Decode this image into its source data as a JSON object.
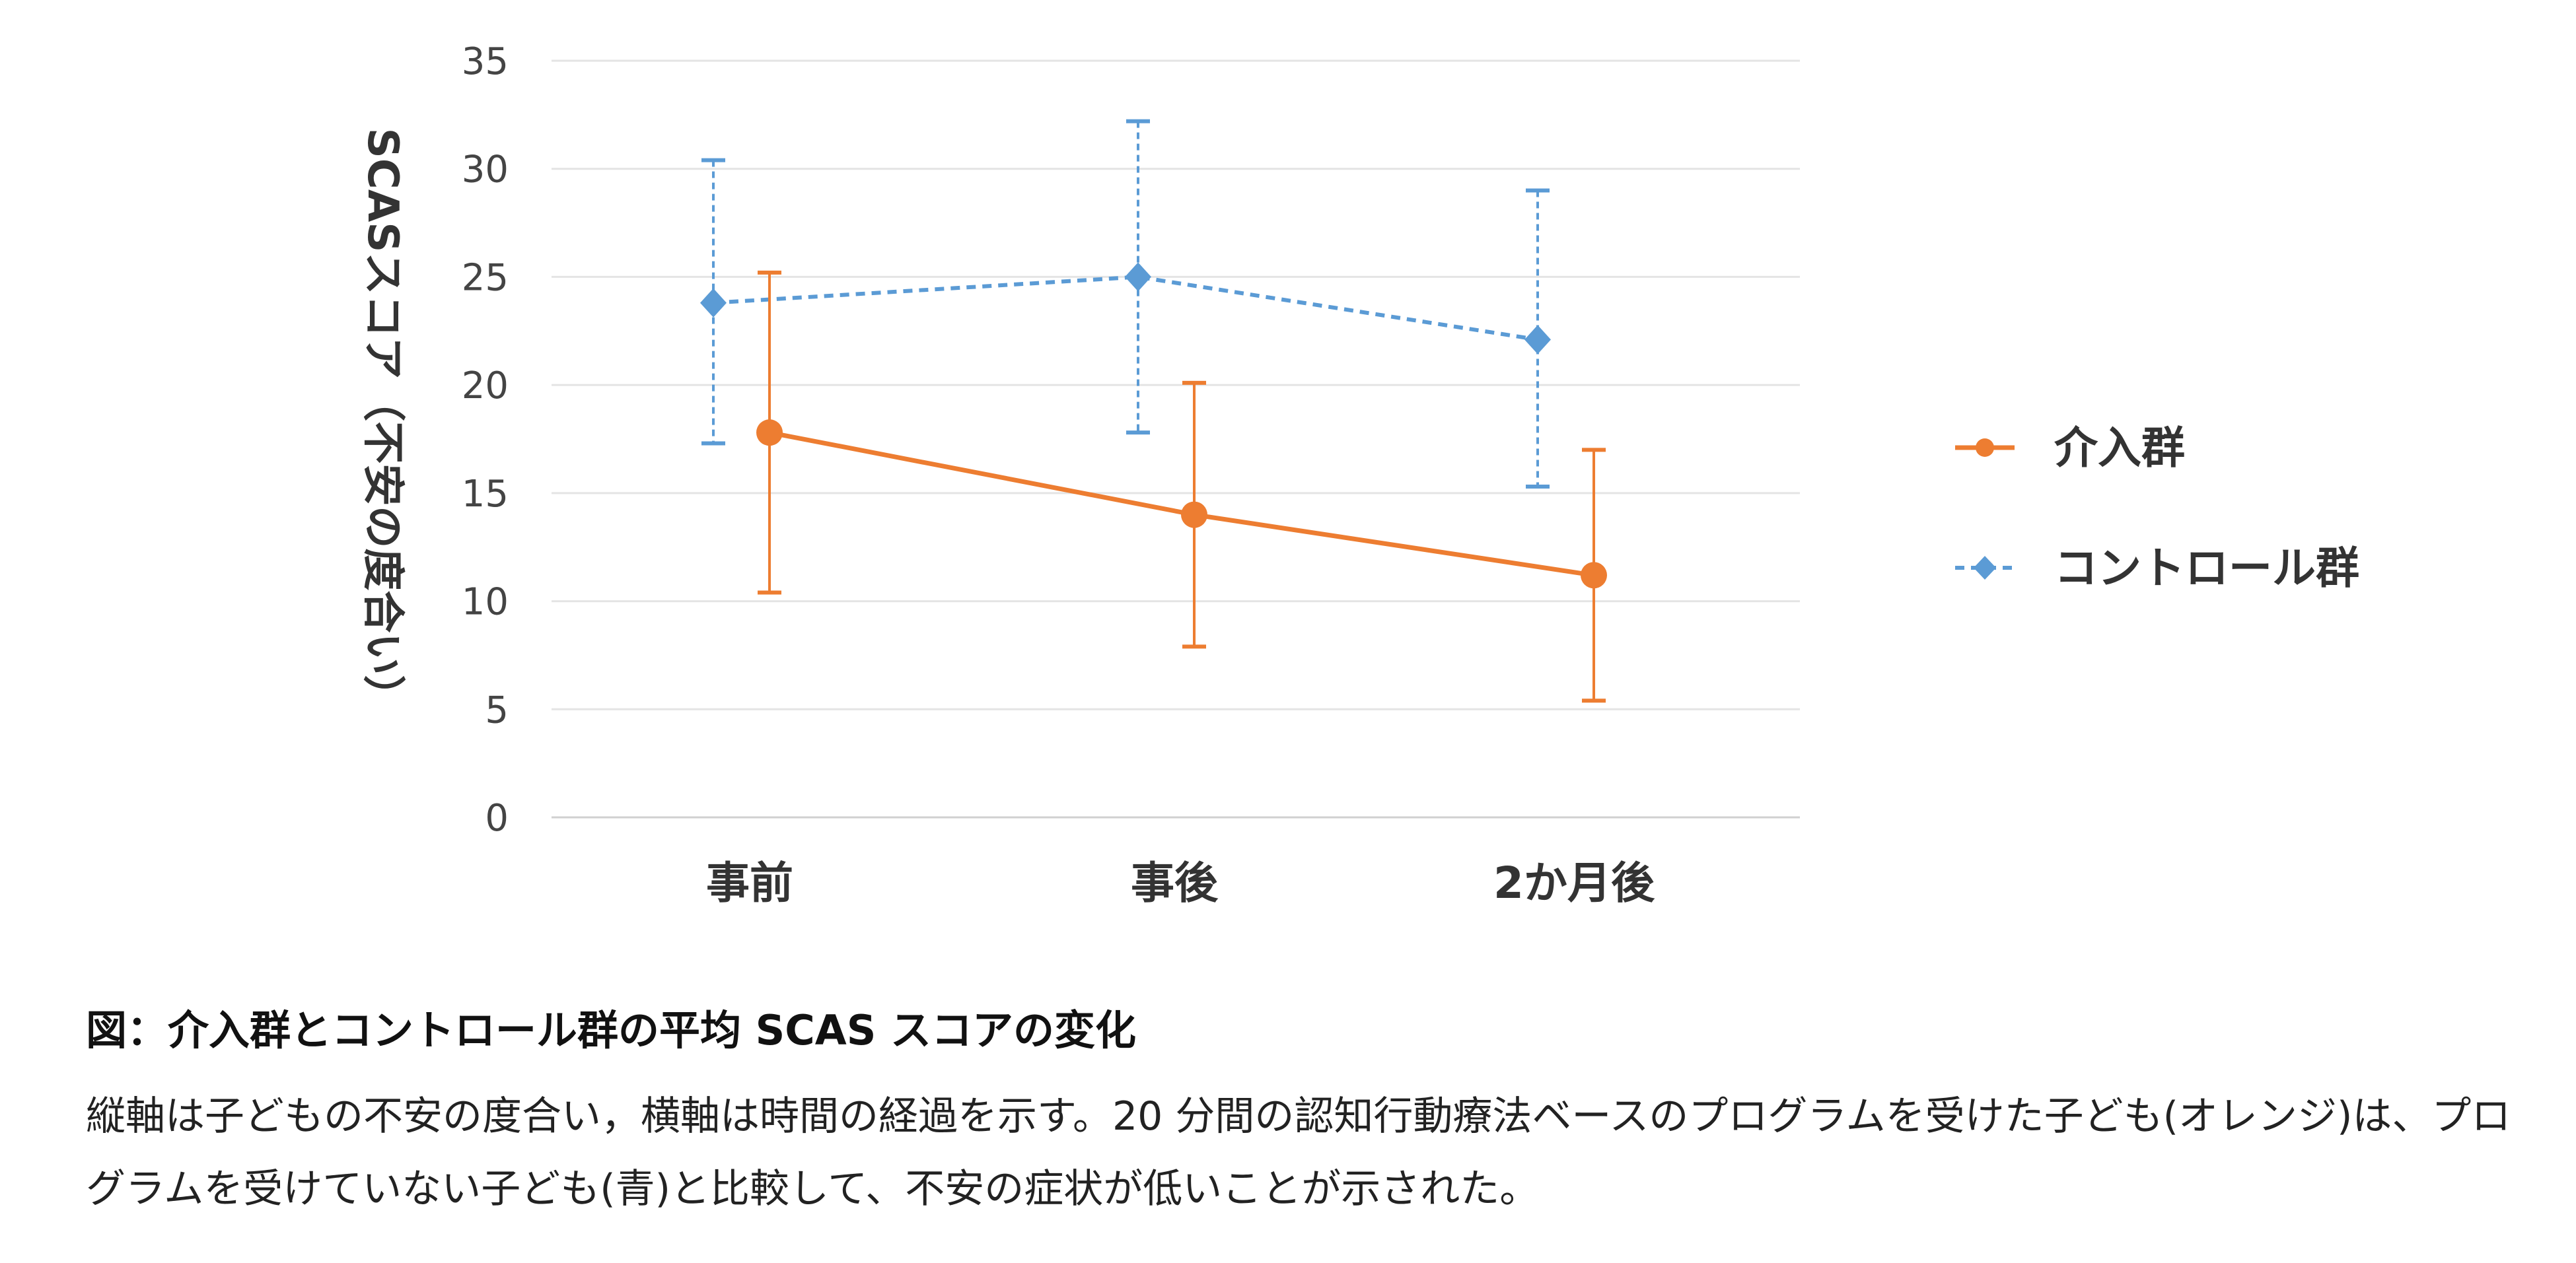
{
  "chart_data": {
    "type": "line",
    "categories": [
      "事前",
      "事後",
      "2か月後"
    ],
    "ylabel": "SCASスコア（不安の度合い）",
    "ylim": [
      0,
      35
    ],
    "yticks": [
      0,
      5,
      10,
      15,
      20,
      25,
      30,
      35
    ],
    "grid": true,
    "legend_position": "right",
    "series": [
      {
        "name": "介入群",
        "color": "#ED7D31",
        "marker": "circle",
        "line_style": "solid",
        "values": [
          17.8,
          14.0,
          11.2
        ],
        "error_upper": [
          25.2,
          20.1,
          17.0
        ],
        "error_lower": [
          10.4,
          7.9,
          5.4
        ]
      },
      {
        "name": "コントロール群",
        "color": "#5B9BD5",
        "marker": "diamond",
        "line_style": "dashed",
        "values": [
          23.8,
          25.0,
          22.1
        ],
        "error_upper": [
          30.4,
          32.2,
          29.0
        ],
        "error_lower": [
          17.3,
          17.8,
          15.3
        ]
      }
    ]
  },
  "caption": {
    "title": "図：介入群とコントロール群の平均 SCAS スコアの変化",
    "body": "縦軸は子どもの不安の度合い，横軸は時間の経過を示す。20 分間の認知行動療法ベースのプログラムを受けた子ども(オレンジ)は、プログラムを受けていない子ども(青)と比較して、不安の症状が低いことが示された。"
  }
}
